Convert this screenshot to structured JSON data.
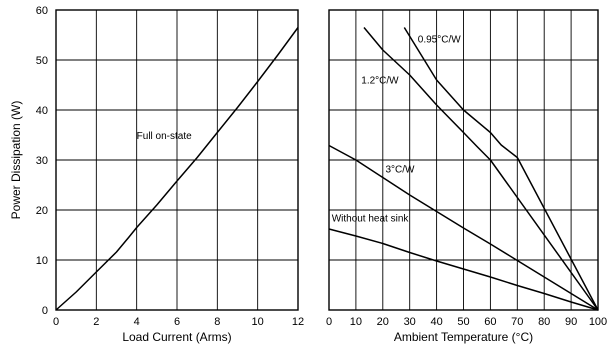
{
  "chart_data": [
    {
      "type": "line",
      "xlabel": "Load Current (Arms)",
      "ylabel": "Power Dissipation (W)",
      "xlim": [
        0,
        12
      ],
      "ylim": [
        0,
        60
      ],
      "xticks": [
        "0",
        "2",
        "4",
        "6",
        "8",
        "10",
        "12"
      ],
      "yticks": [
        "0",
        "10",
        "20",
        "30",
        "40",
        "50",
        "60"
      ],
      "grid": true,
      "series": [
        {
          "name": "Full on-state",
          "x": [
            0,
            1,
            2,
            3,
            3.6,
            4,
            5,
            6,
            7,
            8,
            9,
            10,
            11,
            12
          ],
          "y": [
            0,
            3.6,
            7.6,
            11.6,
            14.5,
            16.5,
            21,
            25.8,
            30.5,
            35.5,
            40.5,
            45.7,
            51,
            56.5
          ]
        }
      ]
    },
    {
      "type": "line",
      "xlabel": "Ambient Temperature (°C)",
      "ylabel": "",
      "xlim": [
        0,
        100
      ],
      "ylim": [
        0,
        60
      ],
      "xticks": [
        "0",
        "10",
        "20",
        "30",
        "40",
        "50",
        "60",
        "70",
        "80",
        "90",
        "100"
      ],
      "grid": true,
      "series": [
        {
          "name": "0.95°C/W",
          "x": [
            28,
            40,
            50,
            60,
            64,
            70,
            100
          ],
          "y": [
            56.5,
            46,
            40,
            35.5,
            33,
            30.5,
            0
          ]
        },
        {
          "name": "1.2°C/W",
          "x": [
            13,
            20,
            30,
            40,
            50,
            55,
            60,
            62,
            100
          ],
          "y": [
            56.5,
            52,
            47,
            41,
            35.5,
            32.7,
            30,
            28.5,
            0
          ]
        },
        {
          "name": "3°C/W",
          "x": [
            0,
            10,
            20,
            30,
            40,
            50,
            60,
            70,
            80,
            90,
            100
          ],
          "y": [
            32.9,
            30,
            26.5,
            23,
            19.7,
            16.4,
            13.2,
            9.9,
            6.6,
            3.3,
            0
          ]
        },
        {
          "name": "Without heat sink",
          "x": [
            0,
            10,
            20,
            30,
            40,
            50,
            60,
            70,
            80,
            90,
            100
          ],
          "y": [
            16.2,
            14.8,
            13.3,
            11.5,
            9.8,
            8.2,
            6.6,
            4.9,
            3.3,
            1.6,
            0
          ]
        }
      ]
    }
  ],
  "annotations": {
    "left_curve_label": "Full on-state",
    "right_labels": [
      "0.95°C/W",
      "1.2°C/W",
      "3°C/W",
      "Without heat sink"
    ]
  }
}
